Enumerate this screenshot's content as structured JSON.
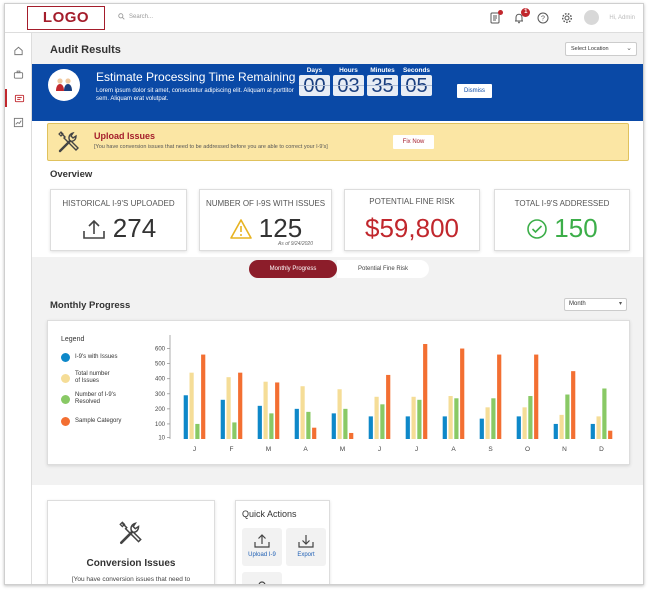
{
  "topbar": {
    "logo": "LOGO",
    "search_placeholder": "Search...",
    "notification_count": "1",
    "user_name": "Hi, Admin"
  },
  "header": {
    "title": "Audit Results",
    "location_select": "Select Location"
  },
  "banner": {
    "title": "Estimate Processing Time Remaining",
    "text": "Lorem ipsum dolor sit amet, consectetur adipiscing elit. Aliquam at porttitor sem.  Aliquam erat volutpat.",
    "countdown": [
      {
        "label": "Days",
        "value": "00"
      },
      {
        "label": "Hours",
        "value": "03"
      },
      {
        "label": "Minutes",
        "value": "35"
      },
      {
        "label": "Seconds",
        "value": "05"
      }
    ],
    "dismiss_label": "Dismiss"
  },
  "alert": {
    "title": "Upload Issues",
    "text": "[You have conversion issues that need to be addressed before you are able to correct your I-9's]",
    "button": "Fix Now"
  },
  "overview": {
    "title": "Overview",
    "cards": [
      {
        "label": "HISTORICAL I-9'S UPLOADED",
        "value": "274"
      },
      {
        "label": "NUMBER OF I-9S WITH ISSUES",
        "value": "125",
        "sub": "As of 9/24/2020"
      },
      {
        "label": "POTENTIAL FINE RISK",
        "value": "$59,800"
      },
      {
        "label": "TOTAL I-9'S ADDRESSED",
        "value": "150"
      }
    ]
  },
  "tabs": {
    "active": "Monthly Progress",
    "inactive": "Potential Fine Risk"
  },
  "monthly": {
    "title": "Monthly Progress",
    "period_select": "Month"
  },
  "chart_data": {
    "type": "bar",
    "legend_title": "Legend",
    "categories": [
      "J",
      "F",
      "M",
      "A",
      "M",
      "J",
      "J",
      "A",
      "S",
      "O",
      "N",
      "D"
    ],
    "y_ticks": [
      600,
      500,
      400,
      300,
      200,
      100,
      10
    ],
    "ylim": [
      0,
      650
    ],
    "grid": false,
    "legend_position": "left",
    "series": [
      {
        "name": "I-9's with Issues",
        "color": "#0e88c9",
        "values": [
          290,
          260,
          220,
          200,
          170,
          150,
          150,
          150,
          135,
          150,
          100,
          100
        ]
      },
      {
        "name": "Total number of Issues",
        "color": "#f5dd97",
        "values": [
          440,
          410,
          380,
          350,
          330,
          280,
          280,
          285,
          210,
          210,
          160,
          150
        ]
      },
      {
        "name": "Number of I-9's Resolved",
        "color": "#89c965",
        "values": [
          100,
          110,
          170,
          180,
          200,
          230,
          260,
          270,
          270,
          285,
          295,
          335
        ]
      },
      {
        "name": "Sample Category",
        "color": "#f36f32",
        "values": [
          560,
          440,
          375,
          75,
          40,
          425,
          630,
          600,
          560,
          560,
          450,
          55
        ]
      }
    ]
  },
  "conversion": {
    "title": "Conversion Issues",
    "text": "[You have conversion issues that need to"
  },
  "quick_actions": {
    "title": "Quick Actions",
    "items": [
      {
        "label": "Upload I-9",
        "icon": "upload-icon"
      },
      {
        "label": "Export",
        "icon": "download-icon"
      }
    ]
  }
}
